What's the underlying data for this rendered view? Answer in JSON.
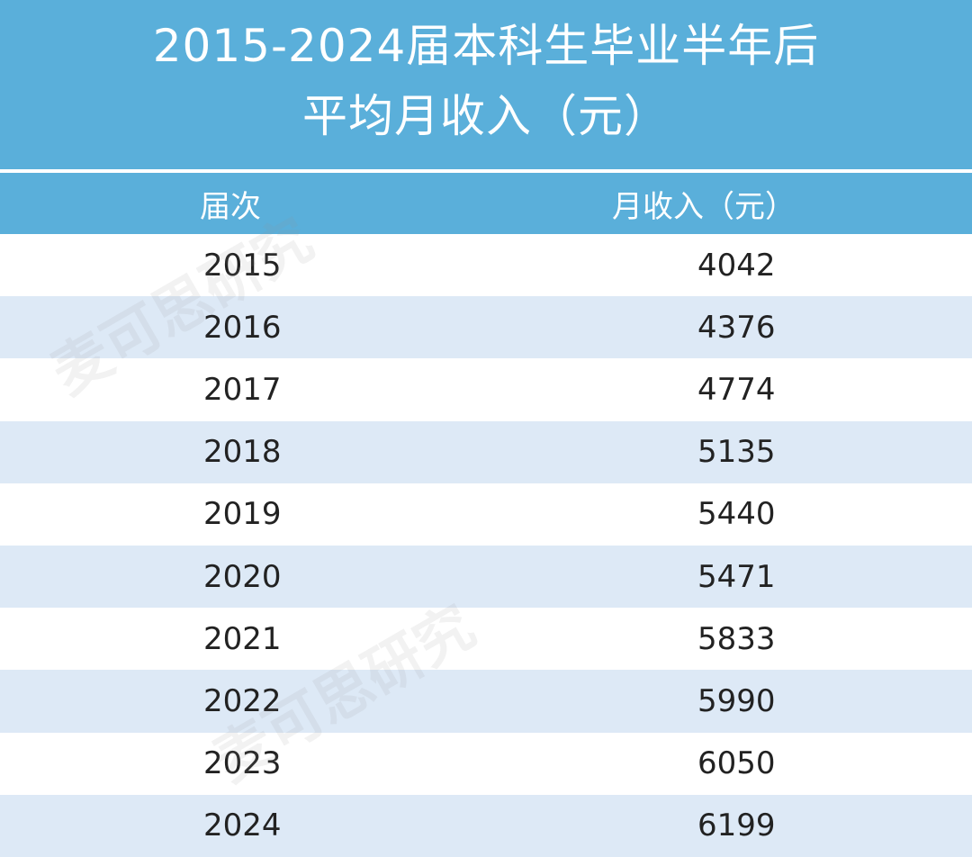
{
  "title_line1": "2015-2024届本科生毕业半年后",
  "title_line2": "平均月收入（元）",
  "watermark": "麦可思研究",
  "colors": {
    "header_bg": "#5aafda",
    "alt_row": "#dde9f6"
  },
  "chart_data": {
    "type": "table",
    "columns": [
      "届次",
      "月收入（元）"
    ],
    "rows": [
      [
        "2015",
        "4042"
      ],
      [
        "2016",
        "4376"
      ],
      [
        "2017",
        "4774"
      ],
      [
        "2018",
        "5135"
      ],
      [
        "2019",
        "5440"
      ],
      [
        "2020",
        "5471"
      ],
      [
        "2021",
        "5833"
      ],
      [
        "2022",
        "5990"
      ],
      [
        "2023",
        "6050"
      ],
      [
        "2024",
        "6199"
      ]
    ]
  }
}
